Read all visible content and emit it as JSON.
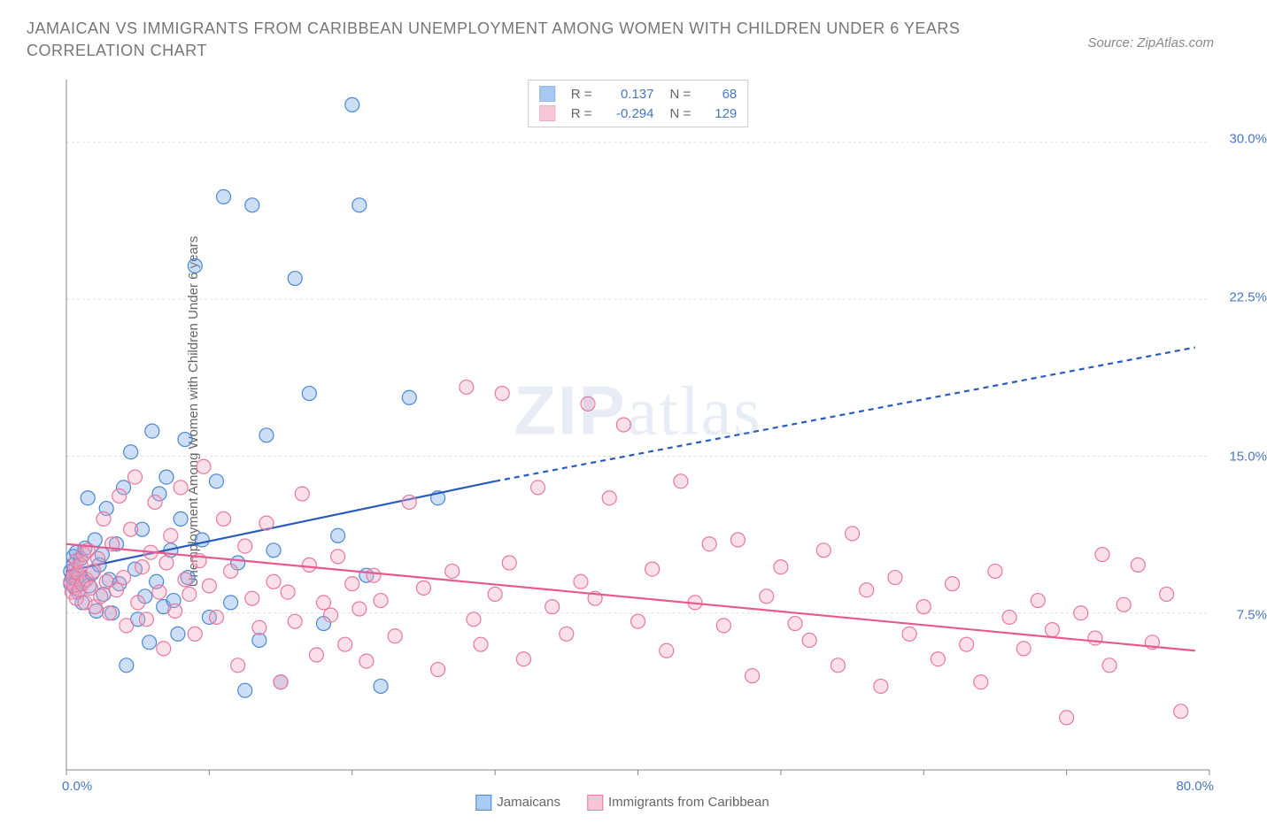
{
  "title": "JAMAICAN VS IMMIGRANTS FROM CARIBBEAN UNEMPLOYMENT AMONG WOMEN WITH CHILDREN UNDER 6 YEARS CORRELATION CHART",
  "source": "Source: ZipAtlas.com",
  "ylabel": "Unemployment Among Women with Children Under 6 years",
  "watermark": {
    "a": "ZIP",
    "b": "atlas"
  },
  "chart": {
    "type": "scatter",
    "xlim": [
      0,
      80
    ],
    "ylim": [
      0,
      33
    ],
    "xtick_positions": [
      0,
      10,
      20,
      30,
      40,
      50,
      60,
      70,
      80
    ],
    "xtick_labels": [
      "0.0%",
      "",
      "",
      "",
      "",
      "",
      "",
      "",
      "80.0%"
    ],
    "ytick_positions": [
      7.5,
      15,
      22.5,
      30
    ],
    "ytick_labels": [
      "7.5%",
      "15.0%",
      "22.5%",
      "30.0%"
    ],
    "grid_color": "#dddddd",
    "background": "#ffffff",
    "marker_radius": 8,
    "marker_stroke_width": 1.2,
    "marker_fill_opacity": 0.35,
    "line_width": 2.2,
    "series": [
      {
        "name": "Jamaicans",
        "color": "#6ea4e8",
        "stroke": "#4a88d6",
        "line_color": "#2a5bc0",
        "R": "0.137",
        "N": "68",
        "trend": {
          "x1": 0,
          "y1": 9.5,
          "x2_solid": 30,
          "y2_solid": 13.8,
          "x2_dash": 79,
          "y2_dash": 20.2
        },
        "points": [
          [
            0.3,
            9.5
          ],
          [
            0.3,
            8.9
          ],
          [
            0.4,
            9.2
          ],
          [
            0.5,
            9.8
          ],
          [
            0.5,
            10.2
          ],
          [
            0.6,
            8.7
          ],
          [
            0.7,
            9.1
          ],
          [
            0.7,
            10.4
          ],
          [
            0.8,
            8.5
          ],
          [
            0.9,
            9.3
          ],
          [
            1.0,
            10.1
          ],
          [
            1.1,
            8.0
          ],
          [
            1.2,
            9.0
          ],
          [
            1.3,
            10.6
          ],
          [
            1.5,
            13.0
          ],
          [
            1.6,
            8.8
          ],
          [
            1.8,
            9.4
          ],
          [
            2.0,
            11.0
          ],
          [
            2.1,
            7.6
          ],
          [
            2.3,
            9.8
          ],
          [
            2.5,
            10.3
          ],
          [
            2.6,
            8.4
          ],
          [
            2.8,
            12.5
          ],
          [
            3.0,
            9.1
          ],
          [
            3.2,
            7.5
          ],
          [
            3.5,
            10.8
          ],
          [
            3.7,
            8.9
          ],
          [
            4.0,
            13.5
          ],
          [
            4.2,
            5.0
          ],
          [
            4.5,
            15.2
          ],
          [
            4.8,
            9.6
          ],
          [
            5.0,
            7.2
          ],
          [
            5.3,
            11.5
          ],
          [
            5.5,
            8.3
          ],
          [
            5.8,
            6.1
          ],
          [
            6.0,
            16.2
          ],
          [
            6.3,
            9.0
          ],
          [
            6.5,
            13.2
          ],
          [
            6.8,
            7.8
          ],
          [
            7.0,
            14.0
          ],
          [
            7.3,
            10.5
          ],
          [
            7.5,
            8.1
          ],
          [
            7.8,
            6.5
          ],
          [
            8.0,
            12.0
          ],
          [
            8.3,
            15.8
          ],
          [
            8.5,
            9.2
          ],
          [
            9.0,
            24.1
          ],
          [
            9.5,
            11.0
          ],
          [
            10.0,
            7.3
          ],
          [
            10.5,
            13.8
          ],
          [
            11.0,
            27.4
          ],
          [
            11.5,
            8.0
          ],
          [
            12.0,
            9.9
          ],
          [
            12.5,
            3.8
          ],
          [
            13.0,
            27.0
          ],
          [
            13.5,
            6.2
          ],
          [
            14.0,
            16.0
          ],
          [
            14.5,
            10.5
          ],
          [
            15.0,
            4.2
          ],
          [
            16.0,
            23.5
          ],
          [
            17.0,
            18.0
          ],
          [
            18.0,
            7.0
          ],
          [
            19.0,
            11.2
          ],
          [
            20.0,
            31.8
          ],
          [
            20.5,
            27.0
          ],
          [
            21.0,
            9.3
          ],
          [
            22.0,
            4.0
          ],
          [
            24.0,
            17.8
          ],
          [
            26.0,
            13.0
          ]
        ]
      },
      {
        "name": "Immigrants from Caribbean",
        "color": "#f4a5bd",
        "stroke": "#e878a0",
        "line_color": "#e85a8f",
        "R": "-0.294",
        "N": "129",
        "trend": {
          "x1": 0,
          "y1": 10.8,
          "x2_solid": 79,
          "y2_solid": 5.7,
          "x2_dash": 79,
          "y2_dash": 5.7
        },
        "points": [
          [
            0.3,
            9.0
          ],
          [
            0.4,
            8.5
          ],
          [
            0.5,
            9.3
          ],
          [
            0.5,
            8.8
          ],
          [
            0.6,
            9.6
          ],
          [
            0.7,
            8.2
          ],
          [
            0.7,
            10.0
          ],
          [
            0.8,
            9.4
          ],
          [
            0.9,
            8.6
          ],
          [
            1.0,
            9.8
          ],
          [
            1.1,
            8.9
          ],
          [
            1.2,
            10.3
          ],
          [
            1.3,
            8.0
          ],
          [
            1.4,
            9.1
          ],
          [
            1.5,
            10.5
          ],
          [
            1.7,
            8.7
          ],
          [
            1.9,
            9.5
          ],
          [
            2.0,
            7.8
          ],
          [
            2.2,
            10.1
          ],
          [
            2.4,
            8.3
          ],
          [
            2.6,
            12.0
          ],
          [
            2.8,
            9.0
          ],
          [
            3.0,
            7.5
          ],
          [
            3.2,
            10.8
          ],
          [
            3.5,
            8.6
          ],
          [
            3.7,
            13.1
          ],
          [
            4.0,
            9.2
          ],
          [
            4.2,
            6.9
          ],
          [
            4.5,
            11.5
          ],
          [
            4.8,
            14.0
          ],
          [
            5.0,
            8.0
          ],
          [
            5.3,
            9.7
          ],
          [
            5.6,
            7.2
          ],
          [
            5.9,
            10.4
          ],
          [
            6.2,
            12.8
          ],
          [
            6.5,
            8.5
          ],
          [
            6.8,
            5.8
          ],
          [
            7.0,
            9.9
          ],
          [
            7.3,
            11.2
          ],
          [
            7.6,
            7.6
          ],
          [
            8.0,
            13.5
          ],
          [
            8.3,
            9.1
          ],
          [
            8.6,
            8.4
          ],
          [
            9.0,
            6.5
          ],
          [
            9.3,
            10.0
          ],
          [
            9.6,
            14.5
          ],
          [
            10.0,
            8.8
          ],
          [
            10.5,
            7.3
          ],
          [
            11.0,
            12.0
          ],
          [
            11.5,
            9.5
          ],
          [
            12.0,
            5.0
          ],
          [
            12.5,
            10.7
          ],
          [
            13.0,
            8.2
          ],
          [
            13.5,
            6.8
          ],
          [
            14.0,
            11.8
          ],
          [
            14.5,
            9.0
          ],
          [
            15.0,
            4.2
          ],
          [
            15.5,
            8.5
          ],
          [
            16.0,
            7.1
          ],
          [
            16.5,
            13.2
          ],
          [
            17.0,
            9.8
          ],
          [
            17.5,
            5.5
          ],
          [
            18.0,
            8.0
          ],
          [
            18.5,
            7.4
          ],
          [
            19.0,
            10.2
          ],
          [
            19.5,
            6.0
          ],
          [
            20.0,
            8.9
          ],
          [
            20.5,
            7.7
          ],
          [
            21.0,
            5.2
          ],
          [
            21.5,
            9.3
          ],
          [
            22.0,
            8.1
          ],
          [
            23.0,
            6.4
          ],
          [
            24.0,
            12.8
          ],
          [
            25.0,
            8.7
          ],
          [
            26.0,
            4.8
          ],
          [
            27.0,
            9.5
          ],
          [
            28.0,
            18.3
          ],
          [
            28.5,
            7.2
          ],
          [
            29.0,
            6.0
          ],
          [
            30.0,
            8.4
          ],
          [
            30.5,
            18.0
          ],
          [
            31.0,
            9.9
          ],
          [
            32.0,
            5.3
          ],
          [
            33.0,
            13.5
          ],
          [
            34.0,
            7.8
          ],
          [
            35.0,
            6.5
          ],
          [
            36.0,
            9.0
          ],
          [
            36.5,
            17.5
          ],
          [
            37.0,
            8.2
          ],
          [
            38.0,
            13.0
          ],
          [
            39.0,
            16.5
          ],
          [
            40.0,
            7.1
          ],
          [
            41.0,
            9.6
          ],
          [
            42.0,
            5.7
          ],
          [
            43.0,
            13.8
          ],
          [
            44.0,
            8.0
          ],
          [
            45.0,
            10.8
          ],
          [
            46.0,
            6.9
          ],
          [
            47.0,
            11.0
          ],
          [
            48.0,
            4.5
          ],
          [
            49.0,
            8.3
          ],
          [
            50.0,
            9.7
          ],
          [
            51.0,
            7.0
          ],
          [
            52.0,
            6.2
          ],
          [
            53.0,
            10.5
          ],
          [
            54.0,
            5.0
          ],
          [
            55.0,
            11.3
          ],
          [
            56.0,
            8.6
          ],
          [
            57.0,
            4.0
          ],
          [
            58.0,
            9.2
          ],
          [
            59.0,
            6.5
          ],
          [
            60.0,
            7.8
          ],
          [
            61.0,
            5.3
          ],
          [
            62.0,
            8.9
          ],
          [
            63.0,
            6.0
          ],
          [
            64.0,
            4.2
          ],
          [
            65.0,
            9.5
          ],
          [
            66.0,
            7.3
          ],
          [
            67.0,
            5.8
          ],
          [
            68.0,
            8.1
          ],
          [
            69.0,
            6.7
          ],
          [
            70.0,
            2.5
          ],
          [
            71.0,
            7.5
          ],
          [
            72.0,
            6.3
          ],
          [
            72.5,
            10.3
          ],
          [
            73.0,
            5.0
          ],
          [
            74.0,
            7.9
          ],
          [
            75.0,
            9.8
          ],
          [
            76.0,
            6.1
          ],
          [
            77.0,
            8.4
          ],
          [
            78.0,
            2.8
          ]
        ]
      }
    ]
  },
  "bottom_legend": [
    {
      "label": "Jamaicans",
      "fill": "#aaccf4",
      "border": "#4a88d6"
    },
    {
      "label": "Immigrants from Caribbean",
      "fill": "#f7c5d6",
      "border": "#e878a0"
    }
  ]
}
